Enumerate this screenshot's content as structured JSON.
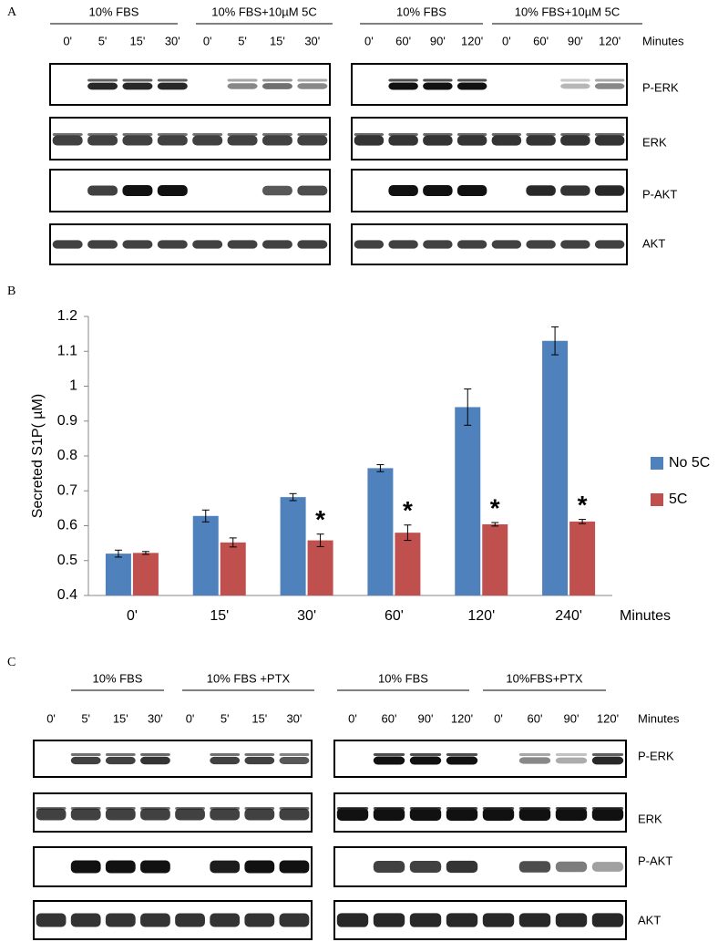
{
  "panel_a": {
    "label": "A",
    "groups": [
      "10% FBS",
      "10% FBS+10µM 5C",
      "10% FBS",
      "10% FBS+10µM 5C"
    ],
    "lanes": [
      [
        "0'",
        "5'",
        "15'",
        "30'",
        "0'",
        "5'",
        "15'",
        "30'"
      ],
      [
        "0'",
        "60'",
        "90'",
        "120'",
        "0'",
        "60'",
        "90'",
        "120'"
      ]
    ],
    "unit": "Minutes",
    "rows": [
      "P-ERK",
      "ERK",
      "P-AKT",
      "AKT"
    ]
  },
  "chart_data": {
    "type": "bar",
    "label": "B",
    "categories": [
      "0'",
      "15'",
      "30'",
      "60'",
      "120'",
      "240'"
    ],
    "x_label": "Minutes",
    "y_label": "Secreted S1P( µM)",
    "ylim": [
      0.4,
      1.2
    ],
    "yticks": [
      0.4,
      0.5,
      0.6,
      0.7,
      0.8,
      0.9,
      1,
      1.1,
      1.2
    ],
    "series": [
      {
        "name": "No 5C",
        "color": "#4f81bd",
        "values": [
          0.52,
          0.628,
          0.682,
          0.765,
          0.94,
          1.13
        ],
        "errors": [
          0.01,
          0.017,
          0.01,
          0.01,
          0.052,
          0.04
        ]
      },
      {
        "name": "5C",
        "color": "#c0504d",
        "values": [
          0.522,
          0.552,
          0.558,
          0.58,
          0.604,
          0.612
        ],
        "errors": [
          0.004,
          0.013,
          0.018,
          0.022,
          0.005,
          0.006
        ],
        "markers": [
          null,
          null,
          "*",
          "*",
          "*",
          "*"
        ]
      }
    ]
  },
  "panel_c": {
    "label": "C",
    "groups": [
      "10% FBS",
      "10% FBS +PTX",
      "10% FBS",
      "10%FBS+PTX"
    ],
    "lanes": [
      [
        "0'",
        "5'",
        "15'",
        "30'",
        "0'",
        "5'",
        "15'",
        "30'"
      ],
      [
        "0'",
        "60'",
        "90'",
        "120'",
        "0'",
        "60'",
        "90'",
        "120'"
      ]
    ],
    "unit": "Minutes",
    "rows": [
      "P-ERK",
      "ERK",
      "P-AKT",
      "AKT"
    ]
  }
}
